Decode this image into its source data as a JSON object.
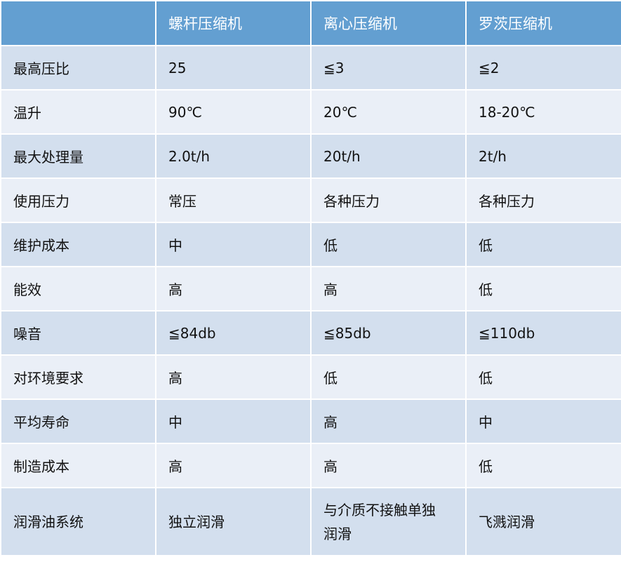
{
  "header": [
    "",
    "螺杆压缩机",
    "离心压缩机",
    "罗茨压缩机"
  ],
  "rows": [
    [
      "最高压比",
      "25",
      "≦3",
      "≦2"
    ],
    [
      "温升",
      "90℃",
      "20℃",
      "18-20℃"
    ],
    [
      "最大处理量",
      "2.0t/h",
      "20t/h",
      "2t/h"
    ],
    [
      "使用压力",
      "常压",
      "各种压力",
      "各种压力"
    ],
    [
      "维护成本",
      "中",
      "低",
      "低"
    ],
    [
      "能效",
      "高",
      "高",
      "低"
    ],
    [
      "噪音",
      "≦84db",
      "≦85db",
      "≦110db"
    ],
    [
      "对环境要求",
      "高",
      "低",
      "低"
    ],
    [
      "平均寿命",
      "中",
      "高",
      "中"
    ],
    [
      "制造成本",
      "高",
      "高",
      "低"
    ],
    [
      "润滑油系统",
      "独立润滑",
      "与介质不接触单独润滑",
      "飞溅润滑"
    ]
  ],
  "colors": {
    "header": "#639fd1",
    "row_dark": "#d3dfee",
    "row_light": "#eaeff7"
  }
}
